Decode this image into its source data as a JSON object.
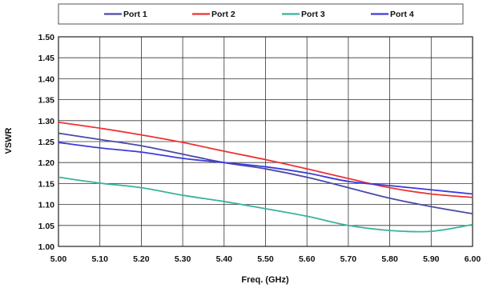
{
  "chart_data": {
    "type": "line",
    "xlabel": "Freq. (GHz)",
    "ylabel": "VSWR",
    "xlim": [
      5.0,
      6.0
    ],
    "ylim": [
      1.0,
      1.5
    ],
    "x_ticks": [
      "5.00",
      "5.10",
      "5.20",
      "5.30",
      "5.40",
      "5.50",
      "5.60",
      "5.70",
      "5.80",
      "5.90",
      "6.00"
    ],
    "y_ticks": [
      "1.00",
      "1.05",
      "1.10",
      "1.15",
      "1.20",
      "1.25",
      "1.30",
      "1.35",
      "1.40",
      "1.45",
      "1.50"
    ],
    "grid": true,
    "legend_position": "top",
    "x": [
      5.0,
      5.1,
      5.2,
      5.3,
      5.4,
      5.5,
      5.6,
      5.7,
      5.8,
      5.9,
      6.0
    ],
    "series": [
      {
        "name": "Port 1",
        "color": "#4a4aa8",
        "values": [
          1.27,
          1.255,
          1.24,
          1.22,
          1.2,
          1.185,
          1.165,
          1.14,
          1.115,
          1.095,
          1.078
        ]
      },
      {
        "name": "Port 2",
        "color": "#ee3333",
        "values": [
          1.296,
          1.282,
          1.266,
          1.248,
          1.227,
          1.207,
          1.185,
          1.162,
          1.14,
          1.125,
          1.117
        ]
      },
      {
        "name": "Port 3",
        "color": "#3ab39a",
        "values": [
          1.165,
          1.151,
          1.14,
          1.122,
          1.107,
          1.09,
          1.072,
          1.05,
          1.038,
          1.036,
          1.052
        ]
      },
      {
        "name": "Port 4",
        "color": "#3c3cdc",
        "values": [
          1.248,
          1.235,
          1.225,
          1.21,
          1.2,
          1.19,
          1.175,
          1.155,
          1.145,
          1.135,
          1.125
        ]
      }
    ]
  }
}
